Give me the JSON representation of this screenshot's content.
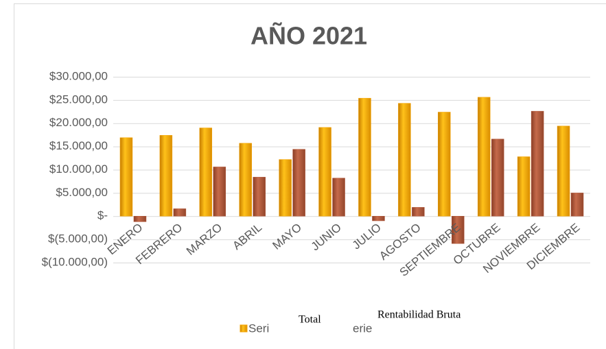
{
  "chart_data": {
    "type": "bar",
    "title": "AÑO 2021",
    "categories": [
      "ENERO",
      "FEBRERO",
      "MARZO",
      "ABRIL",
      "MAYO",
      "JUNIO",
      "JULIO",
      "AGOSTO",
      "SEPTIEMBRE",
      "OCTUBRE",
      "NOVIEMBRE",
      "DICIEMBRE"
    ],
    "series": [
      {
        "name": "Seri",
        "color": "#f5a300",
        "values": [
          16900,
          17400,
          19000,
          15700,
          12200,
          19100,
          25400,
          24300,
          22400,
          25600,
          12800,
          19400
        ]
      },
      {
        "name": "erie",
        "color": "#b4583a",
        "values": [
          -1200,
          1600,
          10600,
          8400,
          14400,
          8200,
          -1000,
          1900,
          -5900,
          16600,
          22600,
          5000
        ]
      }
    ],
    "annotations": [
      "Total",
      "Rentabilidad Bruta"
    ],
    "ylim": [
      -10000,
      30000
    ],
    "yticks": [
      {
        "value": -10000,
        "label": "$(10.000,00)"
      },
      {
        "value": -5000,
        "label": "$(5.000,00)"
      },
      {
        "value": 0,
        "label": "$-"
      },
      {
        "value": 5000,
        "label": "$5.000,00"
      },
      {
        "value": 10000,
        "label": "$10.000,00"
      },
      {
        "value": 15000,
        "label": "$15.000,00"
      },
      {
        "value": 20000,
        "label": "$20.000,00"
      },
      {
        "value": 25000,
        "label": "$25.000,00"
      },
      {
        "value": 30000,
        "label": "$30.000,00"
      }
    ],
    "grid": true
  }
}
